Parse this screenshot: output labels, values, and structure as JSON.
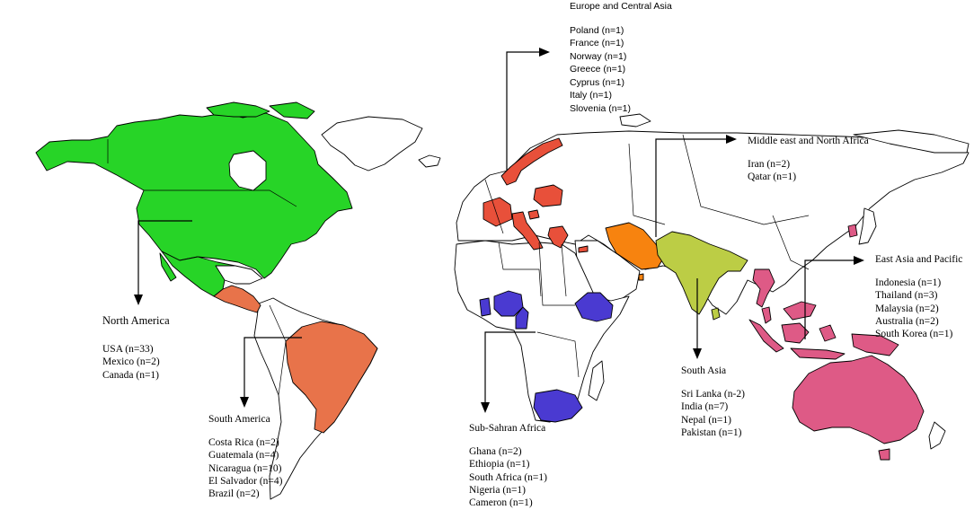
{
  "colors": {
    "north_america": "#27d427",
    "south_america": "#e8734a",
    "europe": "#e8503a",
    "middle_east": "#f7830f",
    "south_asia": "#bccd45",
    "east_asia_pacific": "#de5a86",
    "africa": "#4a3ad1",
    "outline": "#000000",
    "unselected": "#ffffff"
  },
  "regions": {
    "north_america": {
      "title": "North America",
      "items": [
        "USA (n=33)",
        "Mexico (n=2)",
        "Canada (n=1)"
      ]
    },
    "south_america": {
      "title": "South America",
      "items": [
        "Costa Rica (n=2)",
        "Guatemala (n=4)",
        "Nicaragua (n=10)",
        "El Salvador (n=4)",
        "Brazil (n=2)"
      ]
    },
    "europe": {
      "title": "Europe and Central Asia",
      "items": [
        "Poland (n=1)",
        "France (n=1)",
        "Norway (n=1)",
        "Greece (n=1)",
        "Cyprus (n=1)",
        "Italy (n=1)",
        "Slovenia (n=1)"
      ]
    },
    "middle_east": {
      "title": "Middle east and North Africa",
      "items": [
        "Iran (n=2)",
        "Qatar (n=1)"
      ]
    },
    "east_asia": {
      "title": "East Asia and Pacific",
      "items": [
        "Indonesia (n=1)",
        "Thailand (n=3)",
        "Malaysia (n=2)",
        "Australia (n=2)",
        "South Korea (n=1)"
      ]
    },
    "south_asia": {
      "title": "South Asia",
      "items": [
        "Sri Lanka (n-2)",
        "India (n=7)",
        "Nepal (n=1)",
        "Pakistan (n=1)"
      ]
    },
    "africa": {
      "title": "Sub-Sahran Africa",
      "items": [
        "Ghana (n=2)",
        "Ethiopia (n=1)",
        "South Africa (n=1)",
        "Nigeria (n=1)",
        "Cameron (n=1)"
      ]
    }
  }
}
